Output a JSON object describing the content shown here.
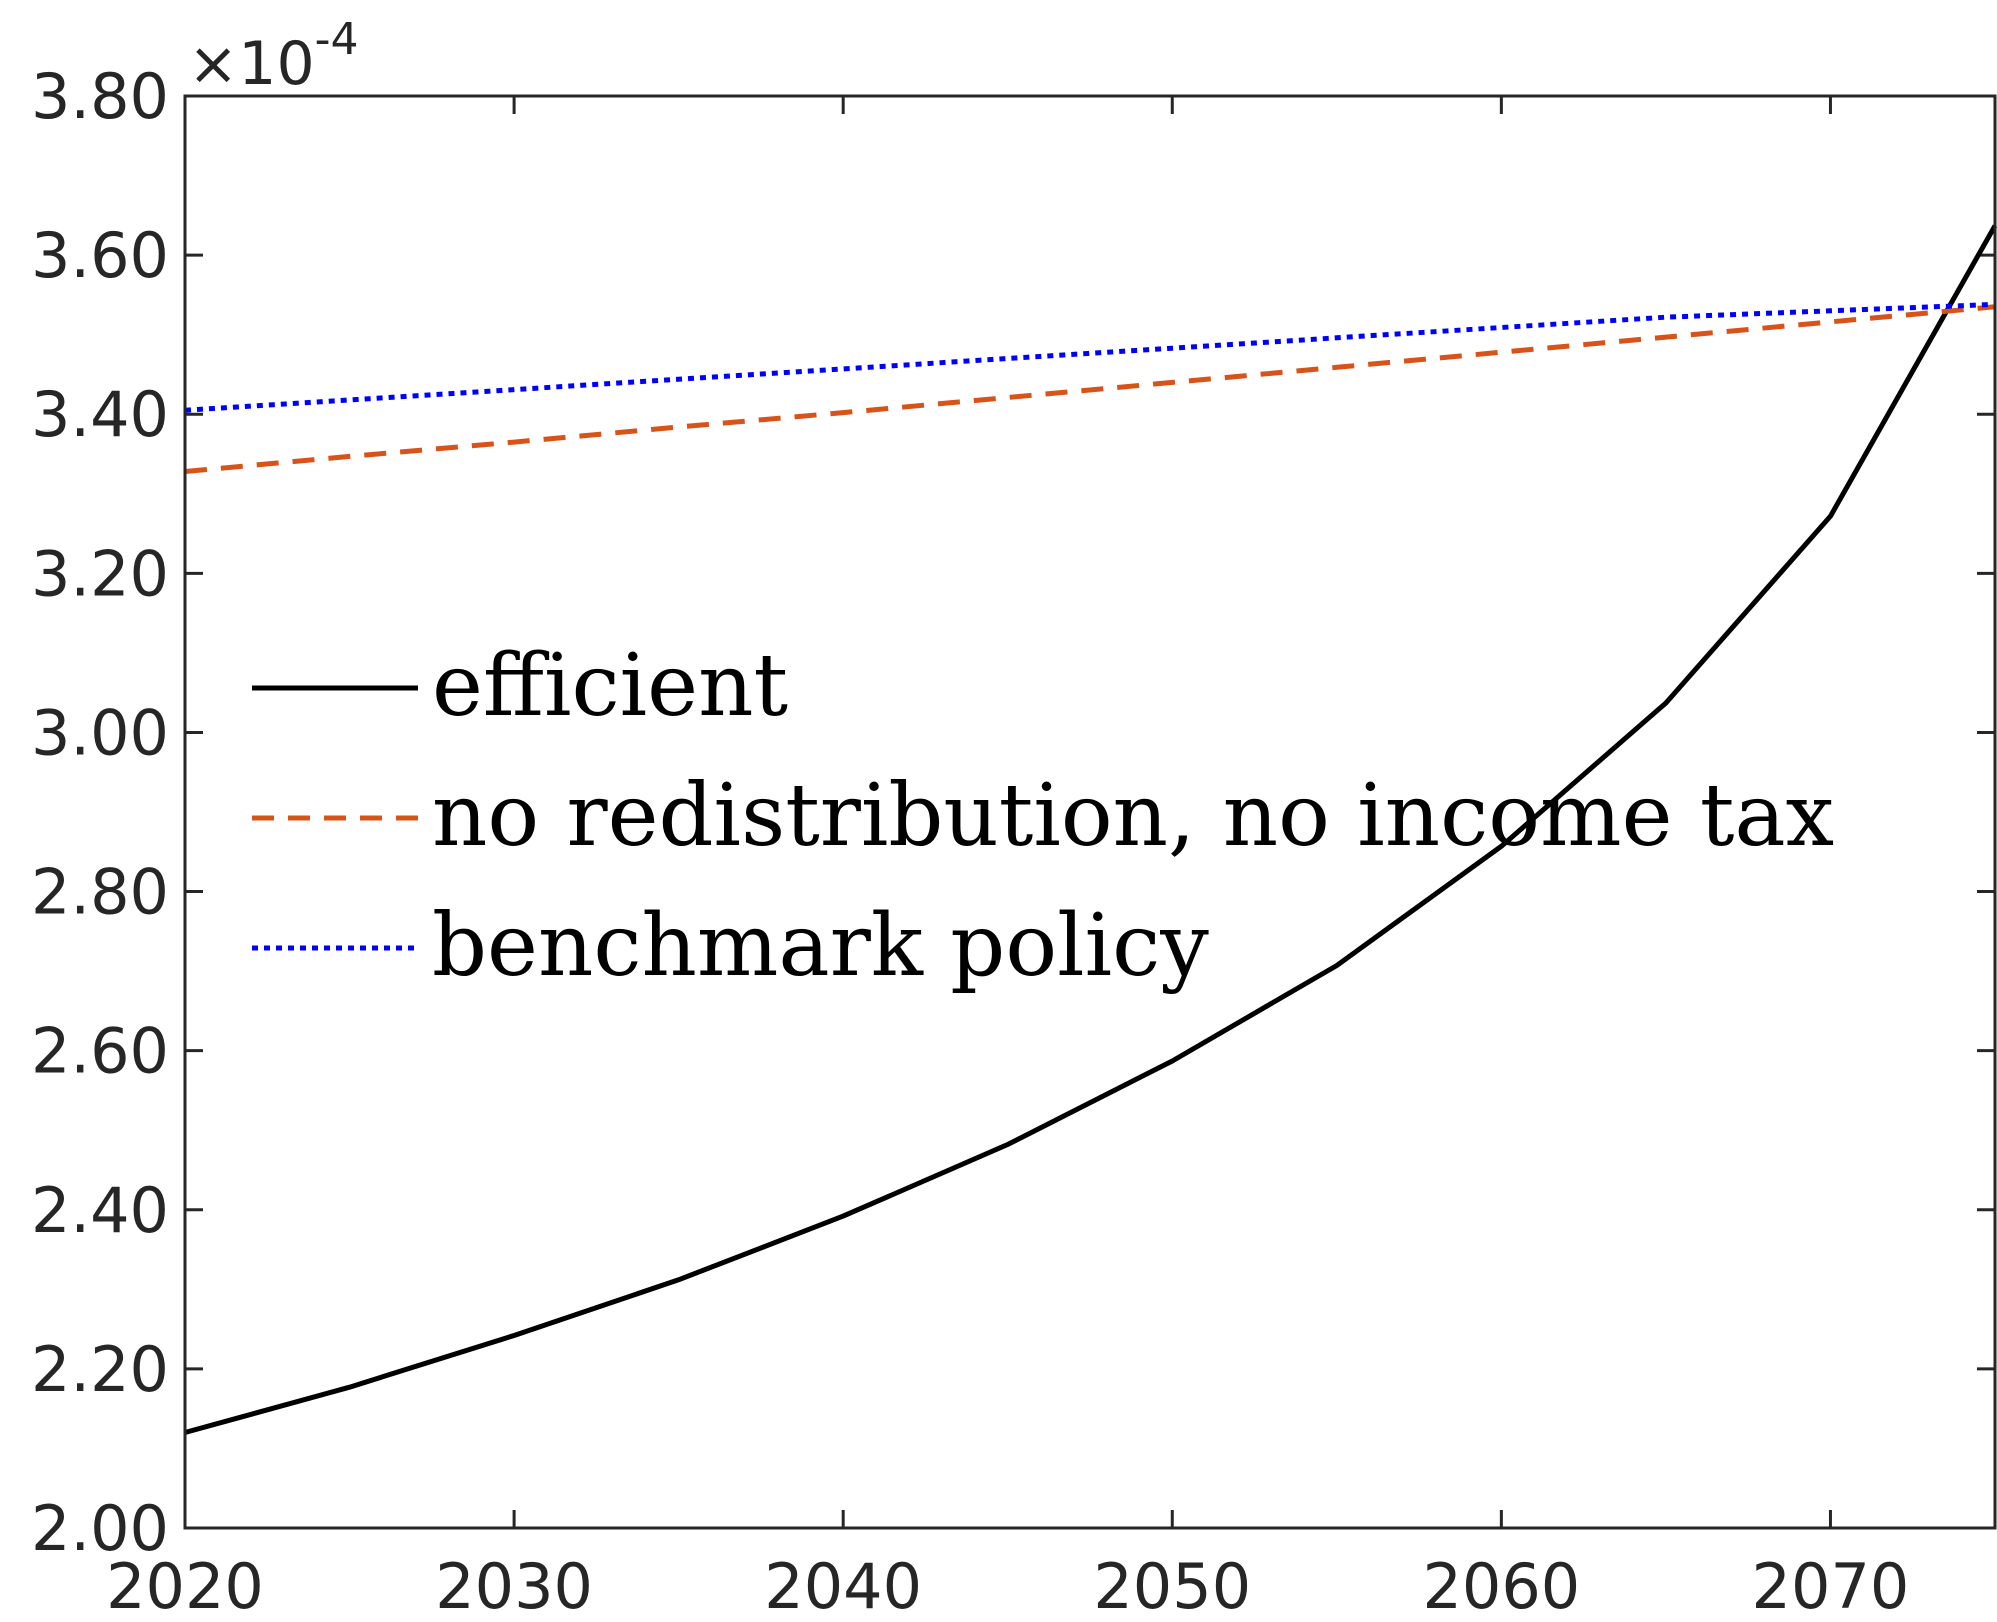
{
  "chart_data": {
    "type": "line",
    "title": "",
    "xlabel": "",
    "ylabel": "",
    "xlim": [
      2020,
      2075
    ],
    "ylim": [
      2.0,
      3.8
    ],
    "y_exponent_label": {
      "base": "×10",
      "exponent": "-4"
    },
    "x_ticks": [
      2020,
      2030,
      2040,
      2050,
      2060,
      2070
    ],
    "x_tick_labels": [
      "2020",
      "2030",
      "2040",
      "2050",
      "2060",
      "2070"
    ],
    "y_ticks": [
      2.0,
      2.2,
      2.4,
      2.6,
      2.8,
      3.0,
      3.2,
      3.4,
      3.6,
      3.8
    ],
    "y_tick_labels": [
      "2.00",
      "2.20",
      "2.40",
      "2.60",
      "2.80",
      "3.00",
      "3.20",
      "3.40",
      "3.60",
      "3.80"
    ],
    "grid": false,
    "legend_position": "center-left",
    "series": [
      {
        "name": "efficient",
        "color": "#000000",
        "style": "solid",
        "x": [
          2020,
          2025,
          2030,
          2035,
          2040,
          2045,
          2050,
          2055,
          2060,
          2065,
          2070,
          2075
        ],
        "y": [
          2.12,
          2.177,
          2.242,
          2.312,
          2.392,
          2.482,
          2.587,
          2.707,
          2.857,
          3.037,
          3.272,
          3.637
        ]
      },
      {
        "name": "no redistribution, no income tax",
        "color": "#D95319",
        "style": "dashed",
        "x": [
          2020,
          2025,
          2030,
          2035,
          2040,
          2045,
          2050,
          2055,
          2060,
          2065,
          2070,
          2075
        ],
        "y": [
          3.328,
          3.347,
          3.365,
          3.384,
          3.402,
          3.421,
          3.44,
          3.459,
          3.478,
          3.497,
          3.516,
          3.535
        ]
      },
      {
        "name": "benchmark policy",
        "color": "#0000FF",
        "style": "dotted",
        "x": [
          2020,
          2025,
          2030,
          2035,
          2040,
          2045,
          2050,
          2055,
          2060,
          2065,
          2070,
          2075
        ],
        "y": [
          3.405,
          3.418,
          3.431,
          3.444,
          3.457,
          3.47,
          3.483,
          3.496,
          3.509,
          3.522,
          3.53,
          3.538
        ]
      }
    ]
  }
}
